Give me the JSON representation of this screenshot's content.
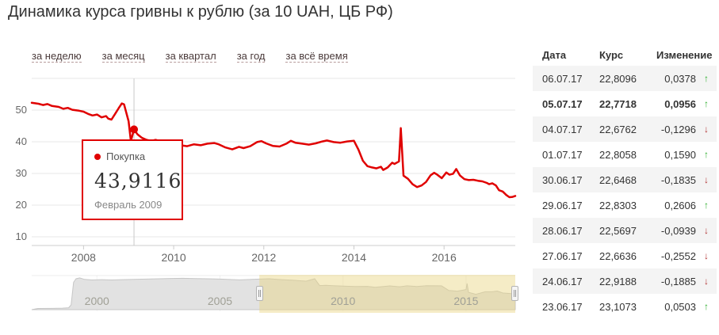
{
  "title": "Динамика курса гривны к рублю (за 10 UAH, ЦБ РФ)",
  "tabs": [
    {
      "id": "week",
      "label": "за неделю"
    },
    {
      "id": "month",
      "label": "за месяц"
    },
    {
      "id": "quarter",
      "label": "за квартал"
    },
    {
      "id": "year",
      "label": "за год"
    },
    {
      "id": "all",
      "label": "за всё время"
    }
  ],
  "tooltip": {
    "series_label": "Покупка",
    "value": "43,9116",
    "date": "Февраль 2009"
  },
  "chart_data": {
    "type": "line",
    "title": "Динамика курса гривны к рублю (за 10 UAH, ЦБ РФ)",
    "main": {
      "xlim": [
        2006.85,
        2017.58
      ],
      "ylim": [
        7.25,
        62
      ],
      "yticks": [
        10,
        20,
        30,
        40,
        50
      ],
      "xticks": [
        2008,
        2010,
        2012,
        2014,
        2016
      ],
      "grid": true,
      "marker": {
        "x": 2009.12,
        "value": 43.9116
      },
      "points": [
        [
          2006.85,
          52.3
        ],
        [
          2007.0,
          52.0
        ],
        [
          2007.1,
          51.6
        ],
        [
          2007.2,
          51.9
        ],
        [
          2007.3,
          51.3
        ],
        [
          2007.45,
          51.0
        ],
        [
          2007.55,
          50.4
        ],
        [
          2007.65,
          50.7
        ],
        [
          2007.75,
          50.1
        ],
        [
          2007.9,
          49.8
        ],
        [
          2008.0,
          49.5
        ],
        [
          2008.1,
          48.8
        ],
        [
          2008.2,
          48.3
        ],
        [
          2008.3,
          48.6
        ],
        [
          2008.4,
          47.7
        ],
        [
          2008.5,
          48.1
        ],
        [
          2008.55,
          47.3
        ],
        [
          2008.62,
          47.0
        ],
        [
          2008.7,
          48.8
        ],
        [
          2008.78,
          50.6
        ],
        [
          2008.85,
          52.1
        ],
        [
          2008.9,
          51.8
        ],
        [
          2009.0,
          46.5
        ],
        [
          2009.05,
          40.2
        ],
        [
          2009.12,
          43.91
        ],
        [
          2009.2,
          42.3
        ],
        [
          2009.3,
          41.2
        ],
        [
          2009.4,
          40.6
        ],
        [
          2009.5,
          40.3
        ],
        [
          2009.6,
          40.6
        ],
        [
          2009.7,
          40.2
        ],
        [
          2009.85,
          40.0
        ],
        [
          2010.0,
          39.6
        ],
        [
          2010.15,
          38.9
        ],
        [
          2010.3,
          38.6
        ],
        [
          2010.45,
          39.2
        ],
        [
          2010.6,
          38.9
        ],
        [
          2010.75,
          39.4
        ],
        [
          2010.9,
          39.6
        ],
        [
          2011.0,
          39.2
        ],
        [
          2011.15,
          38.2
        ],
        [
          2011.3,
          37.6
        ],
        [
          2011.45,
          38.4
        ],
        [
          2011.55,
          38.0
        ],
        [
          2011.7,
          38.6
        ],
        [
          2011.85,
          39.9
        ],
        [
          2011.95,
          40.2
        ],
        [
          2012.05,
          39.5
        ],
        [
          2012.2,
          38.7
        ],
        [
          2012.35,
          38.5
        ],
        [
          2012.5,
          39.4
        ],
        [
          2012.6,
          40.3
        ],
        [
          2012.7,
          39.7
        ],
        [
          2012.85,
          39.4
        ],
        [
          2013.0,
          39.1
        ],
        [
          2013.15,
          39.5
        ],
        [
          2013.3,
          40.1
        ],
        [
          2013.4,
          40.4
        ],
        [
          2013.55,
          39.9
        ],
        [
          2013.7,
          39.7
        ],
        [
          2013.85,
          40.1
        ],
        [
          2014.0,
          40.3
        ],
        [
          2014.1,
          37.5
        ],
        [
          2014.2,
          34.0
        ],
        [
          2014.3,
          32.3
        ],
        [
          2014.4,
          31.9
        ],
        [
          2014.5,
          31.6
        ],
        [
          2014.6,
          32.1
        ],
        [
          2014.65,
          31.1
        ],
        [
          2014.75,
          31.9
        ],
        [
          2014.85,
          33.4
        ],
        [
          2014.9,
          33.0
        ],
        [
          2015.0,
          33.8
        ],
        [
          2015.04,
          44.3
        ],
        [
          2015.1,
          29.3
        ],
        [
          2015.2,
          28.3
        ],
        [
          2015.3,
          26.6
        ],
        [
          2015.4,
          25.7
        ],
        [
          2015.5,
          26.2
        ],
        [
          2015.6,
          27.3
        ],
        [
          2015.7,
          29.4
        ],
        [
          2015.78,
          30.2
        ],
        [
          2015.85,
          29.6
        ],
        [
          2015.95,
          28.5
        ],
        [
          2016.05,
          30.3
        ],
        [
          2016.12,
          29.6
        ],
        [
          2016.2,
          29.9
        ],
        [
          2016.27,
          31.4
        ],
        [
          2016.35,
          29.4
        ],
        [
          2016.45,
          28.2
        ],
        [
          2016.55,
          27.9
        ],
        [
          2016.65,
          28.0
        ],
        [
          2016.75,
          27.7
        ],
        [
          2016.85,
          27.5
        ],
        [
          2016.95,
          27.0
        ],
        [
          2017.0,
          26.6
        ],
        [
          2017.07,
          26.9
        ],
        [
          2017.15,
          26.2
        ],
        [
          2017.22,
          24.7
        ],
        [
          2017.3,
          24.3
        ],
        [
          2017.38,
          23.2
        ],
        [
          2017.45,
          22.5
        ],
        [
          2017.52,
          22.6
        ],
        [
          2017.58,
          22.9
        ]
      ]
    },
    "navigator": {
      "xlim": [
        1997.35,
        2017.0
      ],
      "xticks": [
        2000,
        2005,
        2010,
        2015
      ],
      "selection": [
        2006.6,
        2017.58
      ],
      "points": [
        [
          1997.6,
          2
        ],
        [
          1998.2,
          2.2
        ],
        [
          1998.6,
          2.6
        ],
        [
          1998.85,
          3.2
        ],
        [
          1998.95,
          8
        ],
        [
          1999.05,
          46
        ],
        [
          1999.15,
          52
        ],
        [
          1999.3,
          53.5
        ],
        [
          1999.5,
          51
        ],
        [
          1999.8,
          50
        ],
        [
          2000.2,
          50.5
        ],
        [
          2000.6,
          50
        ],
        [
          2001.0,
          50.5
        ],
        [
          2001.5,
          51
        ],
        [
          2002.0,
          51.5
        ],
        [
          2002.5,
          52
        ],
        [
          2003.0,
          52.5
        ],
        [
          2003.5,
          52.8
        ],
        [
          2004.0,
          52.4
        ],
        [
          2004.5,
          52
        ],
        [
          2005.0,
          51.5
        ],
        [
          2005.4,
          50.8
        ],
        [
          2005.8,
          50.2
        ],
        [
          2006.2,
          50.8
        ],
        [
          2006.6,
          51.4
        ],
        [
          2007.0,
          52
        ],
        [
          2007.5,
          50.5
        ],
        [
          2008.0,
          49.5
        ],
        [
          2008.5,
          48
        ],
        [
          2008.85,
          52
        ],
        [
          2009.05,
          40.5
        ],
        [
          2009.3,
          41
        ],
        [
          2009.6,
          40.3
        ],
        [
          2010.0,
          39.6
        ],
        [
          2010.5,
          39
        ],
        [
          2011.0,
          39.2
        ],
        [
          2011.3,
          37.6
        ],
        [
          2011.9,
          40
        ],
        [
          2012.3,
          38.6
        ],
        [
          2012.6,
          40.2
        ],
        [
          2013.0,
          39.1
        ],
        [
          2013.4,
          40.3
        ],
        [
          2014.0,
          40.2
        ],
        [
          2014.3,
          32.3
        ],
        [
          2014.65,
          31.2
        ],
        [
          2015.0,
          33.8
        ],
        [
          2015.04,
          44
        ],
        [
          2015.1,
          29.2
        ],
        [
          2015.4,
          25.8
        ],
        [
          2015.78,
          30.1
        ],
        [
          2016.05,
          30.2
        ],
        [
          2016.27,
          31.3
        ],
        [
          2016.5,
          28
        ],
        [
          2017.0,
          26.6
        ],
        [
          2017.3,
          24.3
        ],
        [
          2017.58,
          22.9
        ]
      ]
    }
  },
  "table": {
    "headers": {
      "date": "Дата",
      "rate": "Курс",
      "change": "Изменение"
    },
    "up_glyph": "↑",
    "down_glyph": "↓",
    "rows": [
      {
        "date": "06.07.17",
        "rate": "22,8096",
        "change": "0,0378",
        "direction": "up",
        "bold": false
      },
      {
        "date": "05.07.17",
        "rate": "22,7718",
        "change": "0,0956",
        "direction": "up",
        "bold": true
      },
      {
        "date": "04.07.17",
        "rate": "22,6762",
        "change": "-0,1296",
        "direction": "down",
        "bold": false
      },
      {
        "date": "01.07.17",
        "rate": "22,8058",
        "change": "0,1590",
        "direction": "up",
        "bold": false
      },
      {
        "date": "30.06.17",
        "rate": "22,6468",
        "change": "-0,1835",
        "direction": "down",
        "bold": false
      },
      {
        "date": "29.06.17",
        "rate": "22,8303",
        "change": "0,2606",
        "direction": "up",
        "bold": false
      },
      {
        "date": "28.06.17",
        "rate": "22,5697",
        "change": "-0,0939",
        "direction": "down",
        "bold": false
      },
      {
        "date": "27.06.17",
        "rate": "22,6636",
        "change": "-0,2552",
        "direction": "down",
        "bold": false
      },
      {
        "date": "24.06.17",
        "rate": "22,9188",
        "change": "-0,1885",
        "direction": "down",
        "bold": false
      },
      {
        "date": "23.06.17",
        "rate": "23,1073",
        "change": "0,0503",
        "direction": "up",
        "bold": false
      }
    ]
  },
  "colors": {
    "line": "#e00000",
    "grid": "#e7e7e7",
    "axis": "#cccccc",
    "axis_text": "#666666",
    "nav_area": "#e2e2e2",
    "nav_area_edge": "#c6c6c6",
    "nav_selection": "rgba(232,213,128,0.45)",
    "nav_text": "#a0a096",
    "crosshair": "#c9c9c9",
    "up": "#2fae2f",
    "down": "#b23333"
  }
}
